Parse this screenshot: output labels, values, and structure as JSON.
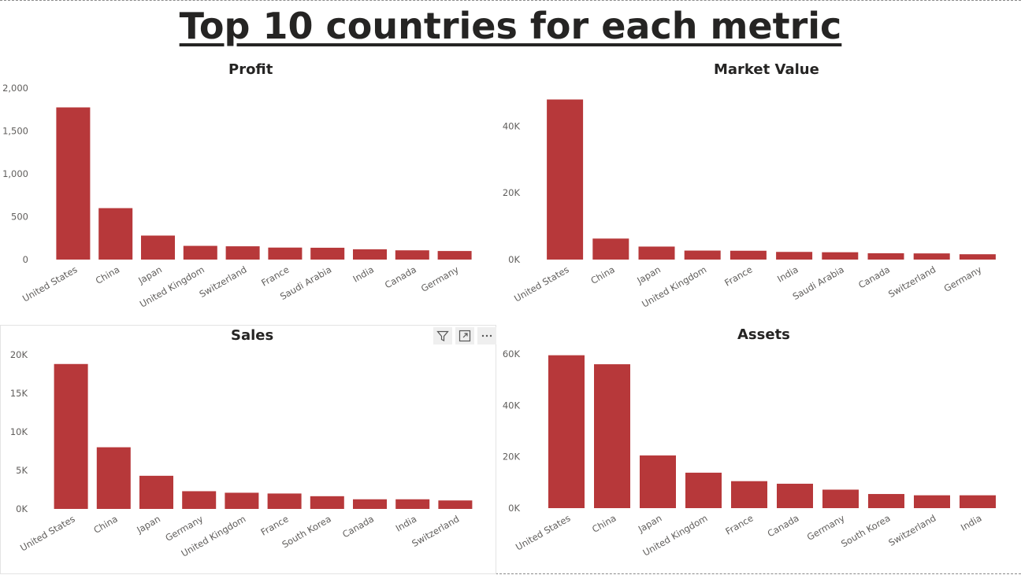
{
  "page_title": "Top 10 countries for each metric",
  "chart_data": [
    {
      "type": "bar",
      "title": "Profit",
      "categories": [
        "United States",
        "China",
        "Japan",
        "United Kingdom",
        "Switzerland",
        "France",
        "Saudi Arabia",
        "India",
        "Canada",
        "Germany"
      ],
      "values": [
        1775,
        600,
        280,
        160,
        155,
        140,
        138,
        120,
        108,
        100
      ],
      "yticks": [
        0,
        500,
        1000,
        1500,
        2000
      ],
      "ytick_labels": [
        "0",
        "500",
        "1,000",
        "1,500",
        "2,000"
      ],
      "ylim": [
        0,
        2000
      ],
      "xlabel": "",
      "ylabel": "",
      "grid": false,
      "legend": "none",
      "bar_color": "#b7383a"
    },
    {
      "type": "bar",
      "title": "Market Value",
      "categories": [
        "United States",
        "China",
        "Japan",
        "United Kingdom",
        "France",
        "India",
        "Saudi Arabia",
        "Canada",
        "Switzerland",
        "Germany"
      ],
      "values": [
        48000,
        6300,
        3900,
        2700,
        2650,
        2300,
        2200,
        1900,
        1850,
        1600
      ],
      "yticks": [
        0,
        20000,
        40000
      ],
      "ytick_labels": [
        "0K",
        "20K",
        "40K"
      ],
      "ylim": [
        0,
        50000
      ],
      "xlabel": "",
      "ylabel": "",
      "grid": false,
      "legend": "none",
      "bar_color": "#b7383a"
    },
    {
      "type": "bar",
      "title": "Sales",
      "categories": [
        "United States",
        "China",
        "Japan",
        "Germany",
        "United Kingdom",
        "France",
        "South Korea",
        "Canada",
        "India",
        "Switzerland"
      ],
      "values": [
        18800,
        8000,
        4300,
        2300,
        2100,
        2000,
        1650,
        1250,
        1250,
        1100
      ],
      "yticks": [
        0,
        5000,
        10000,
        15000,
        20000
      ],
      "ytick_labels": [
        "0K",
        "5K",
        "10K",
        "15K",
        "20K"
      ],
      "ylim": [
        0,
        20000
      ],
      "xlabel": "",
      "ylabel": "",
      "grid": false,
      "legend": "none",
      "bar_color": "#b7383a"
    },
    {
      "type": "bar",
      "title": "Assets",
      "categories": [
        "United States",
        "China",
        "Japan",
        "United Kingdom",
        "France",
        "Canada",
        "Germany",
        "South Korea",
        "Switzerland",
        "India"
      ],
      "values": [
        59500,
        56000,
        20500,
        13800,
        10500,
        9500,
        7200,
        5500,
        5000,
        5000
      ],
      "yticks": [
        0,
        20000,
        40000,
        60000
      ],
      "ytick_labels": [
        "0K",
        "20K",
        "40K",
        "60K"
      ],
      "ylim": [
        0,
        60000
      ],
      "xlabel": "",
      "ylabel": "",
      "grid": false,
      "legend": "none",
      "bar_color": "#b7383a"
    }
  ],
  "visual_toolbar": {
    "icons": [
      "filter-icon",
      "focus-mode-icon",
      "more-options-icon"
    ]
  }
}
